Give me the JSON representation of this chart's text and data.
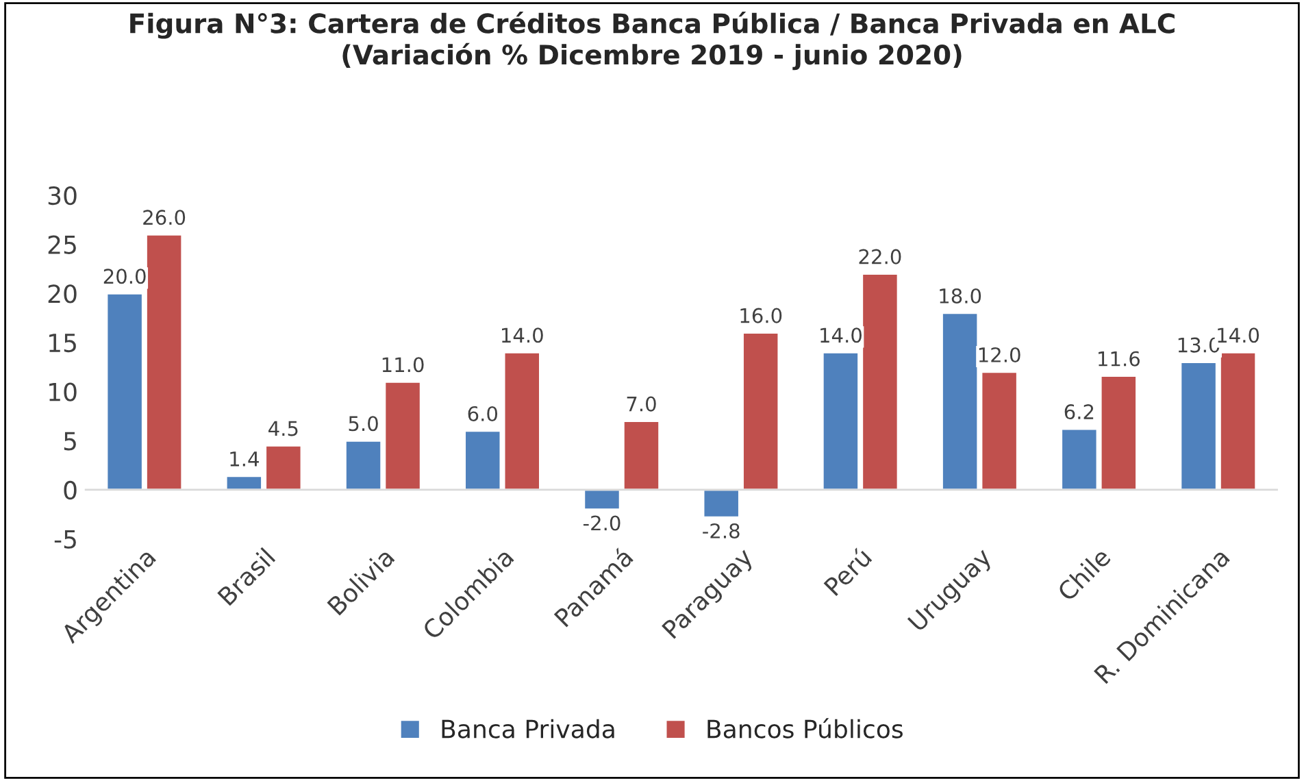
{
  "chart_data": {
    "type": "bar",
    "title": "Figura N°3: Cartera de Créditos Banca Pública / Banca Privada en ALC\n(Variación % Dicembre 2019 - junio 2020)",
    "categories": [
      "Argentina",
      "Brasil",
      "Bolivia",
      "Colombia",
      "Panamá",
      "Paraguay",
      "Perú",
      "Uruguay",
      "Chile",
      "R. Dominicana"
    ],
    "series": [
      {
        "name": "Banca Privada",
        "color": "#4f81bd",
        "values": [
          20.0,
          1.4,
          5.0,
          6.0,
          -2.0,
          -2.8,
          14.0,
          18.0,
          6.2,
          13.0
        ],
        "value_labels": [
          "20.0",
          "1.4",
          "5.0",
          "6.0",
          "-2.0",
          "-2.8",
          "14.0",
          "18.0",
          "6.2",
          "13.0"
        ]
      },
      {
        "name": "Bancos Públicos",
        "color": "#c0504d",
        "values": [
          26.0,
          4.5,
          11.0,
          14.0,
          7.0,
          16.0,
          22.0,
          12.0,
          11.6,
          14.0
        ],
        "value_labels": [
          "26.0",
          "4.5",
          "11.0",
          "14.0",
          "7.0",
          "16.0",
          "22.0",
          "12.0",
          "11.6",
          "14.0"
        ]
      }
    ],
    "ylim": [
      -5,
      30
    ],
    "yticks": [
      -5,
      0,
      5,
      10,
      15,
      20,
      25,
      30
    ],
    "grid": false,
    "legend": "bottom"
  }
}
